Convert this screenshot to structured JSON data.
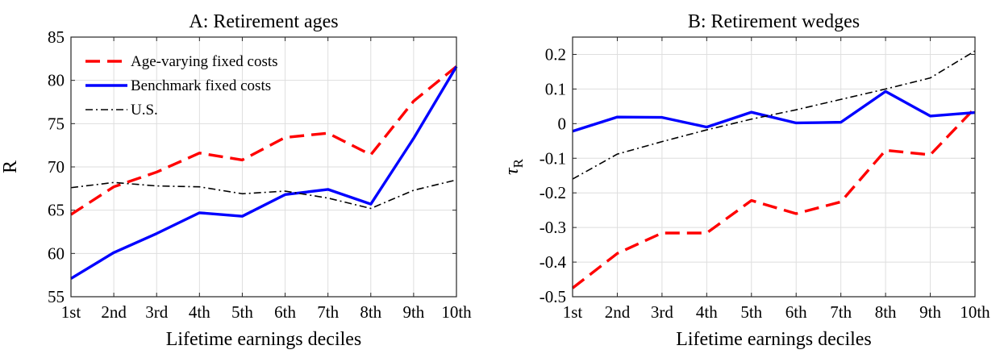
{
  "chart_data": [
    {
      "id": "A",
      "type": "line",
      "title": "A: Retirement ages",
      "xlabel": "Lifetime earnings deciles",
      "ylabel": "R",
      "ylim": [
        55,
        85
      ],
      "yticks": [
        "55",
        "60",
        "65",
        "70",
        "75",
        "80",
        "85"
      ],
      "categories": [
        "1st",
        "2nd",
        "3rd",
        "4th",
        "5th",
        "6th",
        "7th",
        "8th",
        "9th",
        "10th"
      ],
      "grid": true,
      "legend_position": "top-left",
      "series": [
        {
          "name": "Age-varying fixed costs",
          "color": "#ff0000",
          "style": "dashed",
          "values": [
            64.5,
            67.7,
            69.4,
            71.6,
            70.8,
            73.4,
            73.9,
            71.4,
            77.6,
            81.6
          ]
        },
        {
          "name": "Benchmark fixed costs",
          "color": "#0000ff",
          "style": "solid",
          "values": [
            57.1,
            60.1,
            62.3,
            64.7,
            64.3,
            66.8,
            67.4,
            65.7,
            73.3,
            81.6
          ]
        },
        {
          "name": "U.S.",
          "color": "#000000",
          "style": "dashdot",
          "values": [
            67.6,
            68.2,
            67.8,
            67.7,
            66.9,
            67.2,
            66.4,
            65.2,
            67.3,
            68.5
          ]
        }
      ]
    },
    {
      "id": "B",
      "type": "line",
      "title": "B: Retirement wedges",
      "xlabel": "Lifetime earnings deciles",
      "ylabel": "τ",
      "ylabel_sub": "R",
      "ylim": [
        -0.5,
        0.25
      ],
      "yticks": [
        "-0.5",
        "-0.4",
        "-0.3",
        "-0.2",
        "-0.1",
        "0",
        "0.1",
        "0.2"
      ],
      "categories": [
        "1st",
        "2nd",
        "3rd",
        "4th",
        "5th",
        "6th",
        "7th",
        "8th",
        "9th",
        "10th"
      ],
      "grid": true,
      "series": [
        {
          "color": "#ff0000",
          "style": "dashed",
          "values": [
            -0.475,
            -0.375,
            -0.316,
            -0.316,
            -0.222,
            -0.26,
            -0.226,
            -0.077,
            -0.09,
            0.045
          ]
        },
        {
          "color": "#0000ff",
          "style": "solid",
          "values": [
            -0.022,
            0.019,
            0.018,
            -0.01,
            0.033,
            0.002,
            0.004,
            0.093,
            0.022,
            0.032
          ]
        },
        {
          "color": "#000000",
          "style": "dashdot",
          "values": [
            -0.16,
            -0.088,
            -0.052,
            -0.018,
            0.013,
            0.04,
            0.07,
            0.1,
            0.132,
            0.21
          ]
        }
      ]
    }
  ]
}
